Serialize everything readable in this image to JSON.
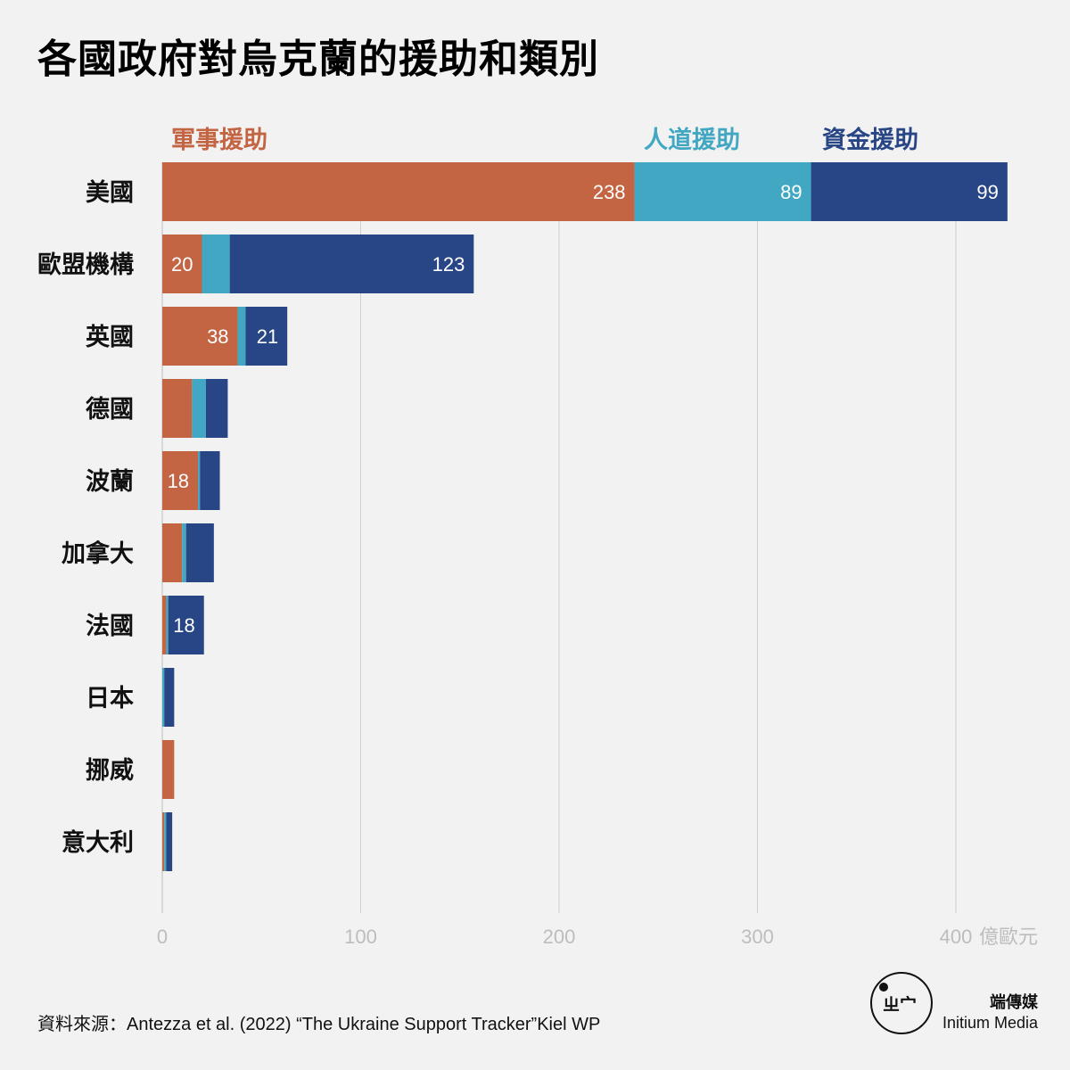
{
  "title": "各國政府對烏克蘭的援助和類別",
  "source": "資料來源：Antezza et al. (2022) “The Ukraine Support Tracker”Kiel WP",
  "brand": {
    "mark": "ㄓ宀",
    "name_cn": "端傳媒",
    "name_en": "Initium Media"
  },
  "colors": {
    "military": "#c36443",
    "humanitarian": "#41a7c3",
    "financial": "#284585",
    "grid": "#cfcfcf",
    "background": "#f2f2f2"
  },
  "chart_data": {
    "type": "bar",
    "orientation": "horizontal",
    "stacked": true,
    "title": "各國政府對烏克蘭的援助和類別",
    "unit": "億歐元",
    "xlim": [
      0,
      425
    ],
    "xticks": [
      0,
      100,
      200,
      300,
      400
    ],
    "grid": true,
    "legend_position": "top",
    "categories": [
      "美國",
      "歐盟機構",
      "英國",
      "德國",
      "波蘭",
      "加拿大",
      "法國",
      "日本",
      "挪威",
      "意大利"
    ],
    "series": [
      {
        "key": "military",
        "name": "軍事援助",
        "values": [
          238,
          20,
          38,
          15,
          18,
          10,
          2,
          0,
          6,
          1
        ],
        "labels": [
          "238",
          "20",
          "38",
          "",
          "18",
          "",
          "",
          "",
          "",
          ""
        ]
      },
      {
        "key": "humanitarian",
        "name": "人道援助",
        "values": [
          89,
          14,
          4,
          7,
          1,
          2,
          1,
          1,
          0,
          1
        ],
        "labels": [
          "89",
          "",
          "",
          "",
          "",
          "",
          "",
          "",
          "",
          ""
        ]
      },
      {
        "key": "financial",
        "name": "資金援助",
        "values": [
          99,
          123,
          21,
          11,
          10,
          14,
          18,
          5,
          0,
          3
        ],
        "labels": [
          "99",
          "123",
          "21",
          "",
          "",
          "",
          "18",
          "",
          "",
          ""
        ]
      }
    ]
  }
}
